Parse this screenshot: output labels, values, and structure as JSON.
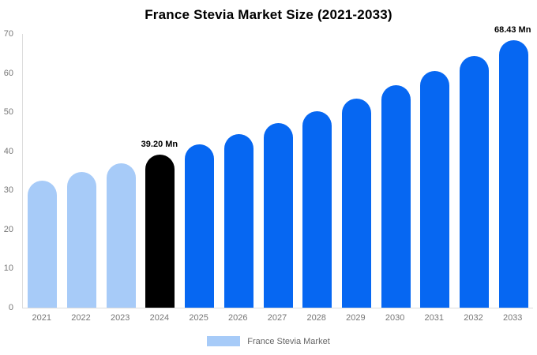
{
  "chart": {
    "title": "France Stevia Market Size (2021-2033)",
    "legend": {
      "label": "France Stevia Market",
      "swatch_color": "#a7cbf8"
    },
    "colors": {
      "historical_bar": "#a7cbf8",
      "highlight_bar": "#000000",
      "forecast_bar": "#0667f2",
      "axis_text": "#777777",
      "axis_line": "#dddddd",
      "annotation_text": "#000000",
      "title_text": "#000000",
      "background": "#ffffff"
    }
  },
  "chart_data": {
    "type": "bar",
    "title": "France Stevia Market Size (2021-2033)",
    "xlabel": "",
    "ylabel": "",
    "unit": "Mn",
    "categories": [
      "2021",
      "2022",
      "2023",
      "2024",
      "2025",
      "2026",
      "2027",
      "2028",
      "2029",
      "2030",
      "2031",
      "2032",
      "2033"
    ],
    "values": [
      32.56,
      34.64,
      36.85,
      39.2,
      41.7,
      44.37,
      47.2,
      50.21,
      53.42,
      56.83,
      60.46,
      64.32,
      68.43
    ],
    "bar_colors": [
      "#a7cbf8",
      "#a7cbf8",
      "#a7cbf8",
      "#000000",
      "#0667f2",
      "#0667f2",
      "#0667f2",
      "#0667f2",
      "#0667f2",
      "#0667f2",
      "#0667f2",
      "#0667f2",
      "#0667f2"
    ],
    "yticks": [
      0,
      10,
      20,
      30,
      40,
      50,
      60,
      70
    ],
    "ylim": [
      0,
      70
    ],
    "grid": false,
    "legend": [
      "France Stevia Market"
    ],
    "legend_position": "bottom",
    "annotations": [
      {
        "category": "2024",
        "text": "39.20 Mn"
      },
      {
        "category": "2033",
        "text": "68.43 Mn"
      }
    ]
  }
}
